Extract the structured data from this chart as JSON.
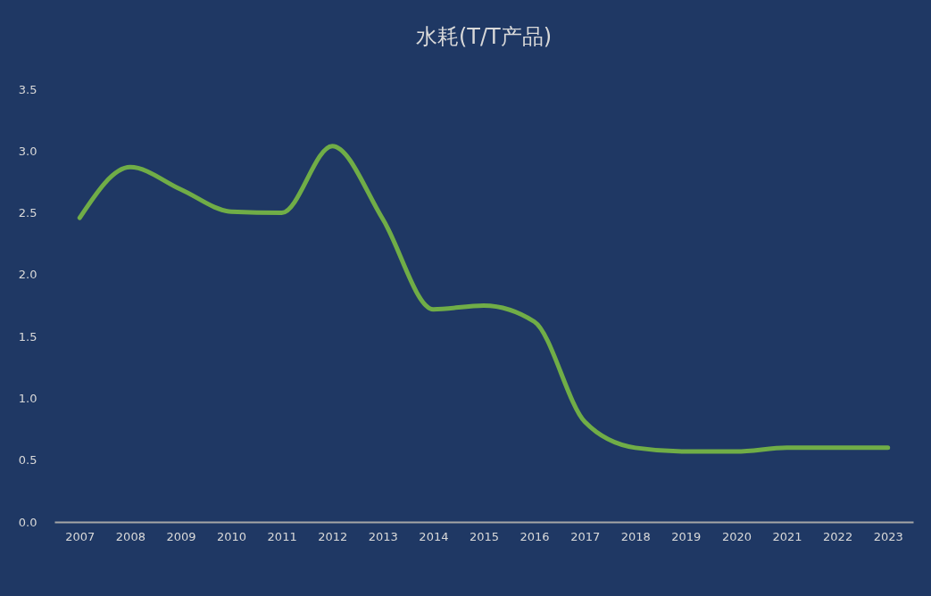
{
  "chart_data": {
    "type": "line",
    "title": "水耗(T/T产品)",
    "categories": [
      "2007",
      "2008",
      "2009",
      "2010",
      "2011",
      "2012",
      "2013",
      "2014",
      "2015",
      "2016",
      "2017",
      "2018",
      "2019",
      "2020",
      "2021",
      "2022",
      "2023"
    ],
    "series": [
      {
        "color": "#70ad47",
        "values": [
          2.46,
          2.87,
          2.69,
          2.51,
          2.5,
          3.04,
          2.45,
          1.72,
          1.75,
          1.62,
          0.81,
          0.6,
          0.57,
          0.57,
          0.6,
          0.6,
          0.6
        ]
      }
    ],
    "ylim": [
      0,
      3.5
    ],
    "yticks": [
      {
        "value": 0,
        "label": "0.0"
      },
      {
        "value": 0.5,
        "label": "0.5"
      },
      {
        "value": 1,
        "label": "1.0"
      },
      {
        "value": 1.5,
        "label": "1.5"
      },
      {
        "value": 2,
        "label": "2.0"
      },
      {
        "value": 2.5,
        "label": "2.5"
      },
      {
        "value": 3,
        "label": "3.0"
      },
      {
        "value": 3.5,
        "label": "3.5"
      }
    ],
    "grid": false,
    "marker": "none",
    "line_style": "solid"
  }
}
